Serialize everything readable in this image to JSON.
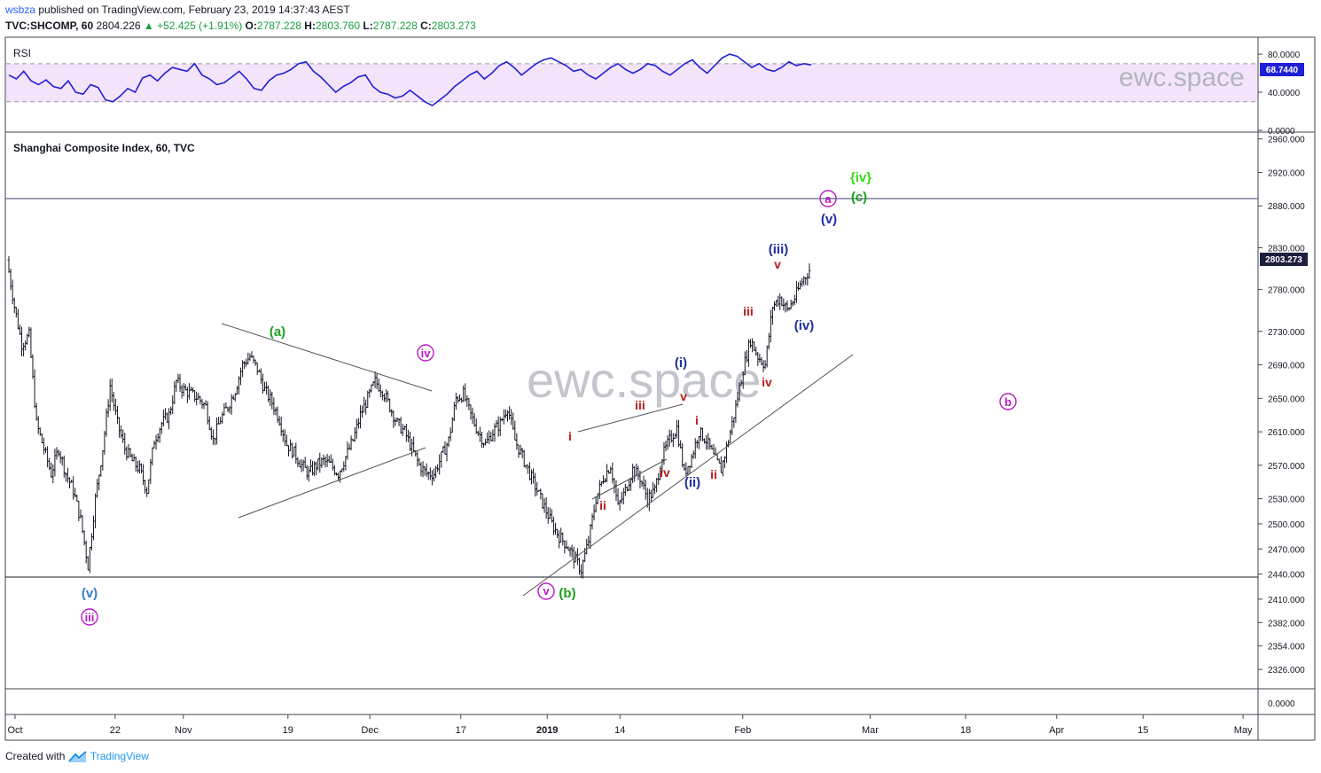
{
  "header": {
    "publisher": "wsbza",
    "published_text": "published on TradingView.com, February 23, 2019 14:37:43 AEST",
    "symbol": "TVC:SHCOMP, 60",
    "price": "2804.226",
    "change": "+52.425 (+1.91%)",
    "o_label": "O:",
    "o_value": "2787.228",
    "h_label": "H:",
    "h_value": "2803.760",
    "l_label": "L:",
    "l_value": "2787.228",
    "c_label": "C:",
    "c_value": "2803.273"
  },
  "footer": {
    "created_with": "Created with",
    "brand": "TradingView"
  },
  "colors": {
    "rsi_line": "#1f1fd6",
    "rsi_band": "#f3e4fb",
    "candles": "#131722",
    "green": "#1ea01e",
    "bright_green": "#33dd11",
    "blue": "#1e2fa0",
    "light_blue": "#3a7bd5",
    "purple": "#b71cc4",
    "red": "#b71c1c",
    "price_tag": "#1c1f3e"
  },
  "chart_data": [
    {
      "type": "line",
      "title": "RSI",
      "ylim": [
        0,
        95
      ],
      "y_ticks": [
        {
          "value": 80,
          "label": "80.0000"
        },
        {
          "value": 40,
          "label": "40.0000"
        },
        {
          "value": 0,
          "label": "0.0000"
        }
      ],
      "band": [
        30,
        70
      ],
      "last_value": 68.744,
      "last_label": "68.7440",
      "values": [
        58,
        54,
        62,
        52,
        48,
        53,
        46,
        44,
        52,
        40,
        38,
        48,
        45,
        32,
        30,
        36,
        44,
        40,
        55,
        58,
        52,
        60,
        66,
        64,
        62,
        70,
        58,
        54,
        48,
        50,
        56,
        62,
        54,
        44,
        42,
        52,
        58,
        60,
        64,
        70,
        72,
        62,
        56,
        48,
        40,
        46,
        50,
        56,
        58,
        46,
        40,
        38,
        34,
        36,
        42,
        36,
        30,
        26,
        32,
        38,
        46,
        52,
        58,
        62,
        54,
        60,
        68,
        72,
        66,
        58,
        64,
        70,
        74,
        76,
        72,
        68,
        62,
        64,
        58,
        54,
        60,
        66,
        70,
        64,
        60,
        64,
        70,
        68,
        62,
        58,
        64,
        70,
        74,
        66,
        60,
        68,
        76,
        80,
        78,
        72,
        66,
        70,
        64,
        62,
        66,
        72,
        68,
        70,
        68.744
      ]
    },
    {
      "type": "candlestick",
      "title": "Shanghai Composite Index, 60, TVC",
      "ylim": [
        2305,
        2965
      ],
      "y_ticks": [
        {
          "value": 2960,
          "label": "2960.000"
        },
        {
          "value": 2920,
          "label": "2920.000"
        },
        {
          "value": 2880,
          "label": "2880.000"
        },
        {
          "value": 2830,
          "label": "2830.000"
        },
        {
          "value": 2780,
          "label": "2780.000"
        },
        {
          "value": 2730,
          "label": "2730.000"
        },
        {
          "value": 2690,
          "label": "2690.000"
        },
        {
          "value": 2650,
          "label": "2650.000"
        },
        {
          "value": 2610,
          "label": "2610.000"
        },
        {
          "value": 2570,
          "label": "2570.000"
        },
        {
          "value": 2530,
          "label": "2530.000"
        },
        {
          "value": 2500,
          "label": "2500.000"
        },
        {
          "value": 2470,
          "label": "2470.000"
        },
        {
          "value": 2440,
          "label": "2440.000"
        },
        {
          "value": 2410,
          "label": "2410.000"
        },
        {
          "value": 2382,
          "label": "2382.000"
        },
        {
          "value": 2354,
          "label": "2354.000"
        },
        {
          "value": 2326,
          "label": "2326.000"
        }
      ],
      "last_price": 2803.273,
      "last_label": "2803.273",
      "x_ticks": [
        {
          "t": 0,
          "label": "Oct"
        },
        {
          "t": 22,
          "label": "22"
        },
        {
          "t": 37,
          "label": "Nov"
        },
        {
          "t": 60,
          "label": "19"
        },
        {
          "t": 78,
          "label": "Dec"
        },
        {
          "t": 98,
          "label": "17"
        },
        {
          "t": 117,
          "label": "2019",
          "bold": true
        },
        {
          "t": 133,
          "label": "14"
        },
        {
          "t": 160,
          "label": "Feb"
        },
        {
          "t": 188,
          "label": "Mar"
        },
        {
          "t": 209,
          "label": "18"
        },
        {
          "t": 229,
          "label": "Apr"
        },
        {
          "t": 248,
          "label": "15"
        },
        {
          "t": 270,
          "label": "May"
        }
      ],
      "closes": [
        2815,
        2760,
        2715,
        2725,
        2620,
        2590,
        2560,
        2590,
        2560,
        2540,
        2505,
        2450,
        2530,
        2590,
        2665,
        2620,
        2590,
        2575,
        2565,
        2540,
        2600,
        2620,
        2630,
        2670,
        2660,
        2655,
        2650,
        2640,
        2600,
        2625,
        2640,
        2660,
        2690,
        2700,
        2685,
        2660,
        2645,
        2625,
        2595,
        2585,
        2570,
        2560,
        2570,
        2575,
        2570,
        2560,
        2580,
        2600,
        2630,
        2650,
        2670,
        2660,
        2640,
        2620,
        2610,
        2590,
        2570,
        2560,
        2560,
        2580,
        2600,
        2650,
        2655,
        2630,
        2610,
        2595,
        2610,
        2620,
        2640,
        2600,
        2580,
        2560,
        2540,
        2520,
        2500,
        2485,
        2475,
        2460,
        2445,
        2480,
        2530,
        2555,
        2570,
        2520,
        2540,
        2565,
        2555,
        2530,
        2540,
        2580,
        2600,
        2615,
        2560,
        2580,
        2610,
        2600,
        2580,
        2565,
        2600,
        2640,
        2685,
        2720,
        2700,
        2690,
        2760,
        2770,
        2755,
        2770,
        2790,
        2803
      ]
    }
  ],
  "annotations": {
    "watermark_rsi": "ewc.space",
    "watermark_main": "ewc.space",
    "green_a": "(a)",
    "green_b": "(b)",
    "green_c": "(c)",
    "bright_green_iv": "{iv}",
    "purple_iii": "iii",
    "purple_iv": "iv",
    "purple_v": "v",
    "purple_a": "a",
    "purple_b": "b",
    "blue_v_left": "(v)",
    "blue_i": "(i)",
    "blue_ii": "(ii)",
    "blue_iii": "(iii)",
    "blue_iv": "(iv)",
    "blue_v_top": "(v)",
    "red_i_1": "i",
    "red_ii_1": "ii",
    "red_iii_1": "iii",
    "red_iv_1": "iv",
    "red_v_1": "v",
    "red_i_2": "i",
    "red_ii_2": "ii",
    "red_iii_2": "iii",
    "red_iv_2": "iv",
    "red_v_2": "v"
  }
}
